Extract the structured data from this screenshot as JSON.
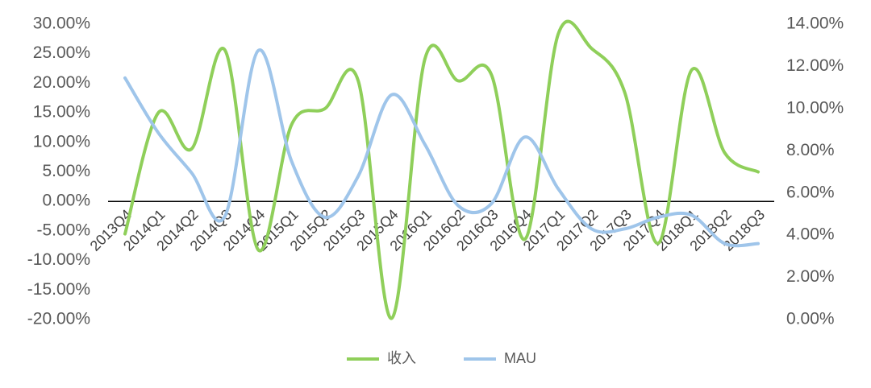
{
  "chart_data": {
    "type": "line",
    "categories": [
      "2013Q4",
      "2014Q1",
      "2014Q2",
      "2014Q3",
      "2014Q4",
      "2015Q1",
      "2015Q2",
      "2015Q3",
      "2015Q4",
      "2016Q1",
      "2016Q2",
      "2016Q3",
      "2016Q4",
      "2017Q1",
      "2017Q2",
      "2017Q3",
      "2017Q4",
      "2018Q1",
      "2018Q2",
      "2018Q3"
    ],
    "series": [
      {
        "name": "收入",
        "color": "#8fcf5a",
        "values": [
          -5.5,
          15.0,
          8.9,
          25.6,
          -8.2,
          13.0,
          15.7,
          20.4,
          -19.8,
          24.1,
          20.4,
          21.4,
          -6.4,
          28.3,
          25.9,
          18.4,
          -7.1,
          22.2,
          8.2,
          5.0
        ]
      },
      {
        "name": "MAU",
        "color": "#9fc5ea",
        "axis": "y2",
        "values": [
          11.45,
          8.85,
          6.95,
          4.9,
          12.75,
          7.5,
          4.85,
          6.8,
          10.65,
          8.3,
          5.4,
          5.5,
          8.65,
          6.2,
          4.3,
          4.3,
          4.85,
          4.95,
          3.6,
          3.6
        ]
      }
    ],
    "ylim": [
      -20,
      30
    ],
    "yticks": [
      {
        "value": -20,
        "label": "-20.00%"
      },
      {
        "value": -15,
        "label": "-15.00%"
      },
      {
        "value": -10,
        "label": "-10.00%"
      },
      {
        "value": -5,
        "label": "-5.00%"
      },
      {
        "value": 0,
        "label": "0.00%"
      },
      {
        "value": 5,
        "label": "5.00%"
      },
      {
        "value": 10,
        "label": "10.00%"
      },
      {
        "value": 15,
        "label": "15.00%"
      },
      {
        "value": 20,
        "label": "20.00%"
      },
      {
        "value": 25,
        "label": "25.00%"
      },
      {
        "value": 30,
        "label": "30.00%"
      }
    ],
    "y2lim": [
      0,
      14
    ],
    "y2ticks": [
      {
        "value": 0,
        "label": "0.00%"
      },
      {
        "value": 2,
        "label": "2.00%"
      },
      {
        "value": 4,
        "label": "4.00%"
      },
      {
        "value": 6,
        "label": "6.00%"
      },
      {
        "value": 8,
        "label": "8.00%"
      },
      {
        "value": 10,
        "label": "10.00%"
      },
      {
        "value": 12,
        "label": "12.00%"
      },
      {
        "value": 14,
        "label": "14.00%"
      }
    ],
    "legend": "bottom"
  }
}
